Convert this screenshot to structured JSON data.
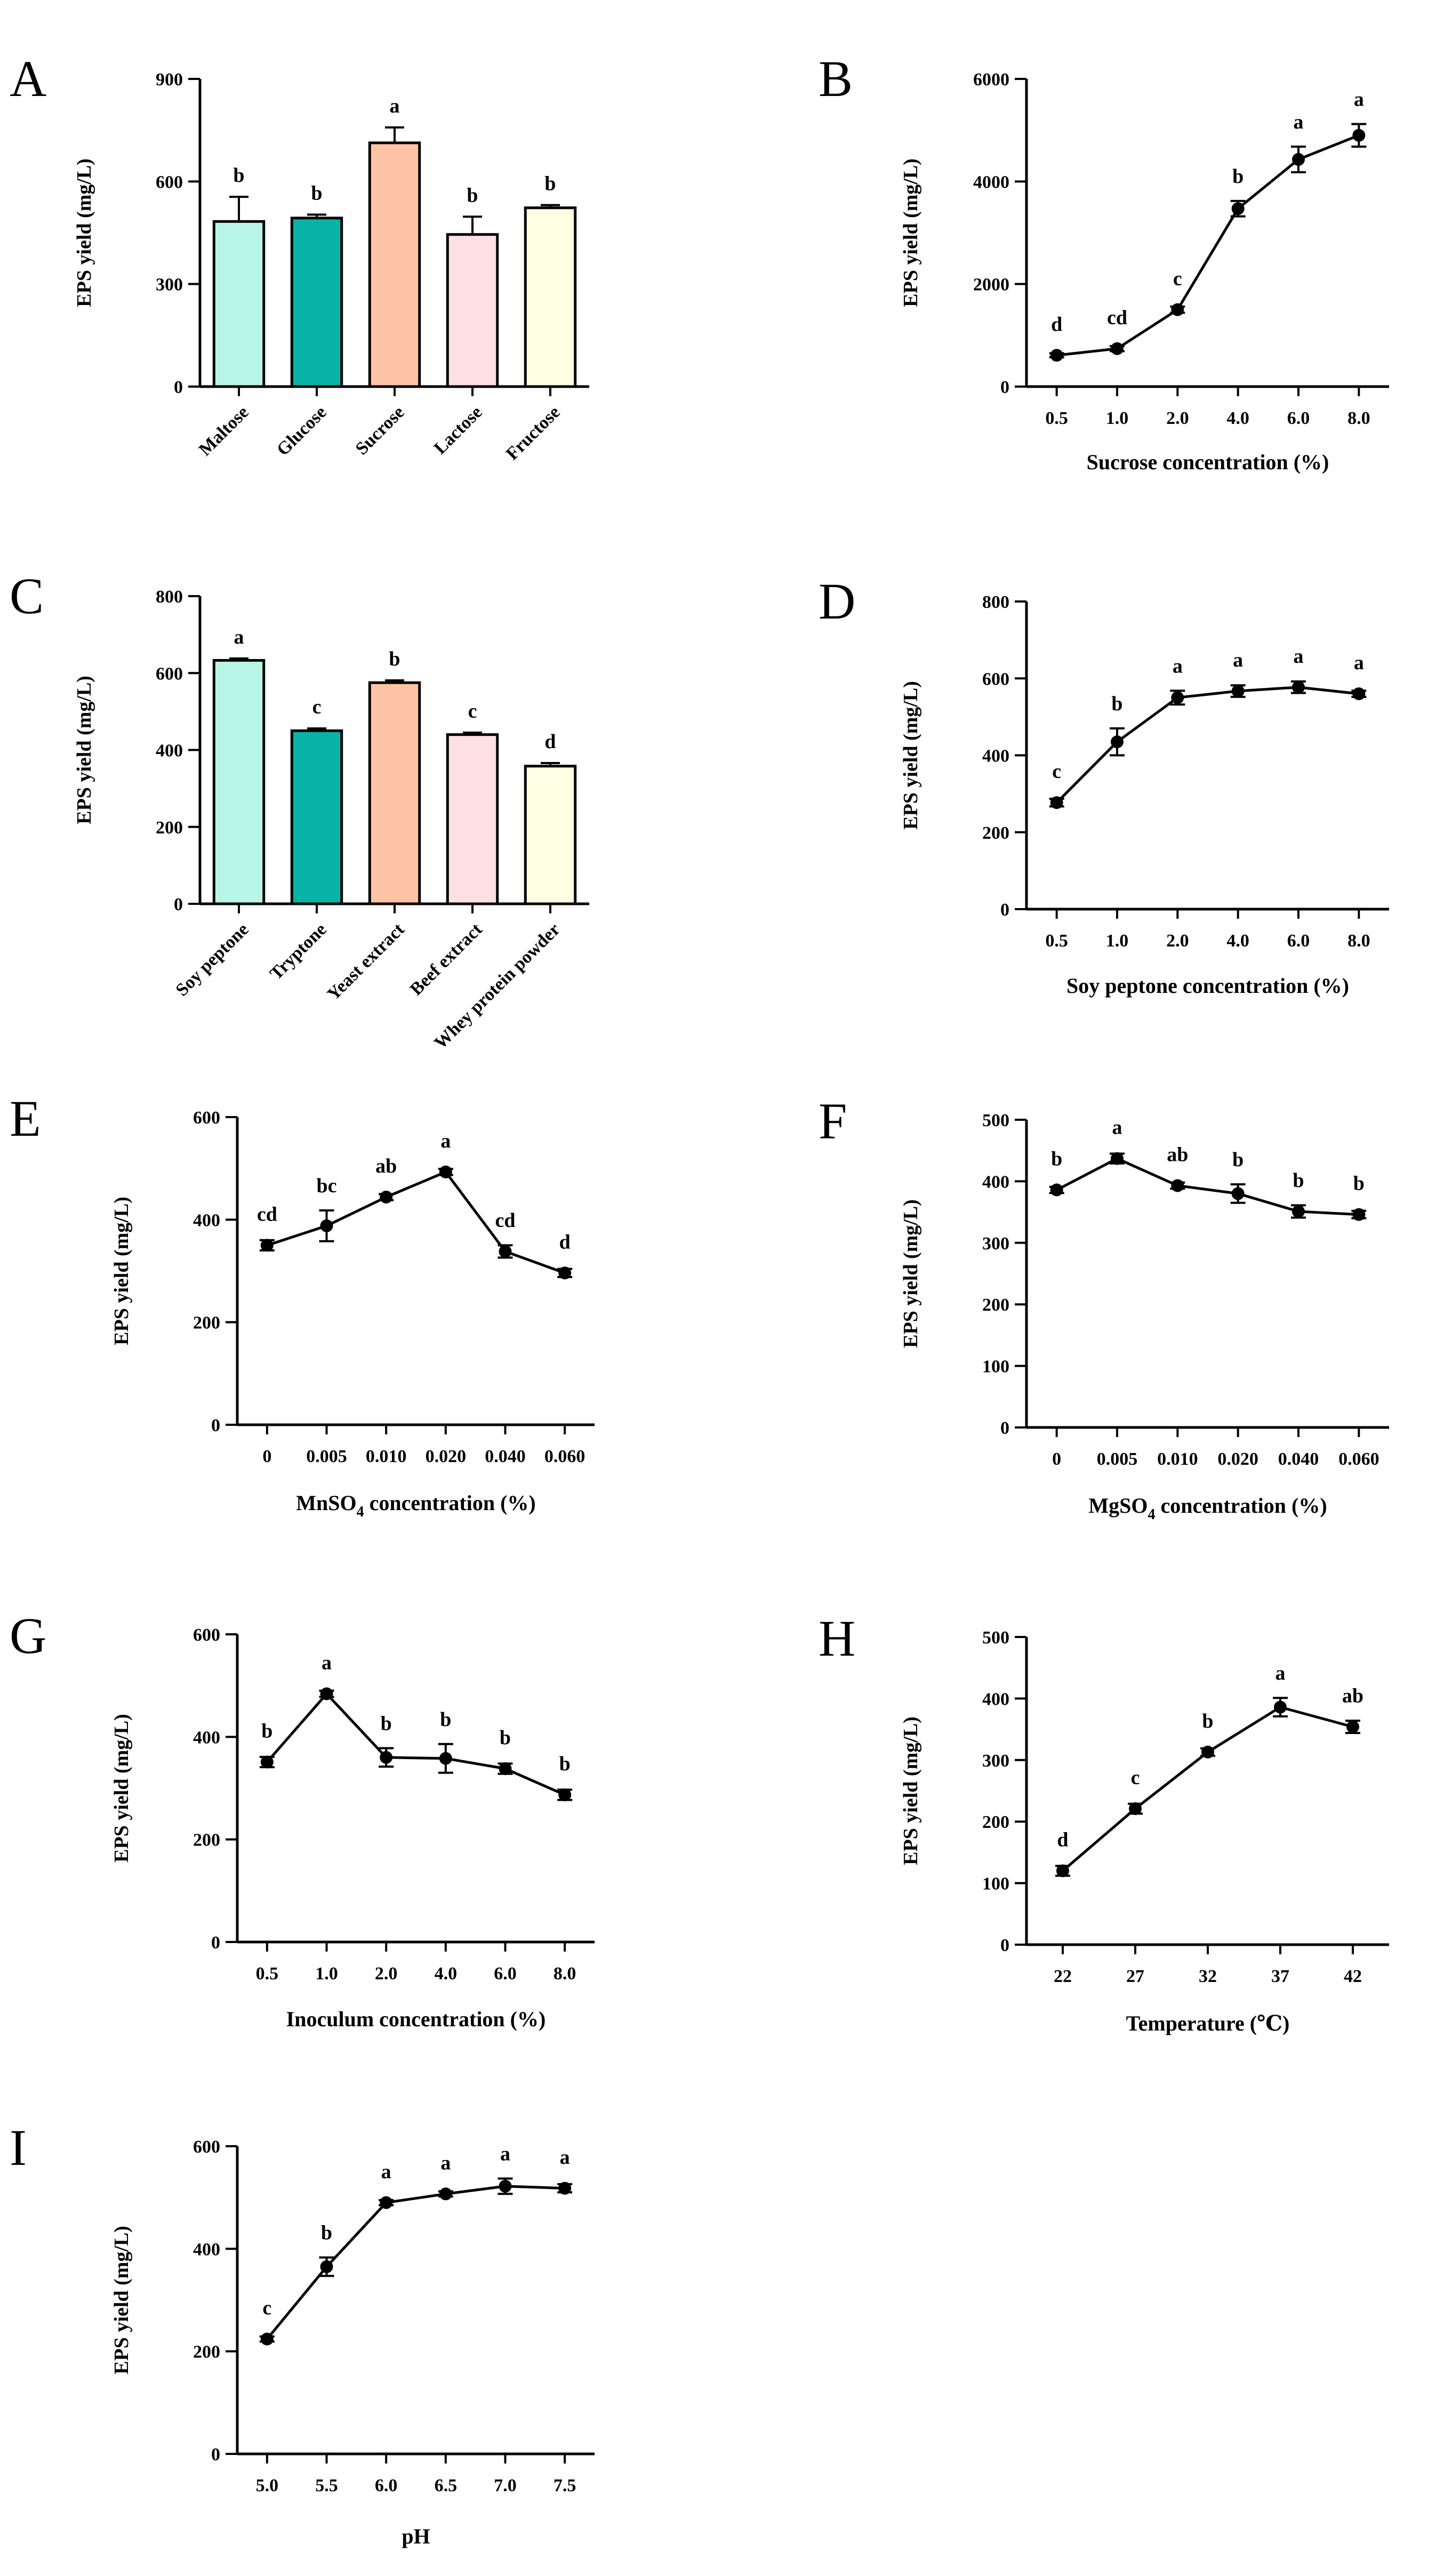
{
  "colors": {
    "bar_palette": [
      "#b8f5e6",
      "#08b2a6",
      "#fec3a5",
      "#fee0e3",
      "#fefee2"
    ],
    "axis": "#000000"
  },
  "chart_data": [
    {
      "panel": "A",
      "type": "bar",
      "categories": [
        "Maltose",
        "Glucose",
        "Sucrose",
        "Lactose",
        "Fructose"
      ],
      "values": [
        483,
        493,
        713,
        445,
        523
      ],
      "errors": [
        72,
        10,
        45,
        52,
        8
      ],
      "letters": [
        "b",
        "b",
        "a",
        "b",
        "b"
      ],
      "ylabel": "EPS yield (mg/L)",
      "xlabel": "",
      "ylim": [
        0,
        900
      ],
      "yticks": [
        "0",
        "300",
        "600",
        "900"
      ]
    },
    {
      "panel": "B",
      "type": "line",
      "categories": [
        "0.5",
        "1.0",
        "2.0",
        "4.0",
        "6.0",
        "8.0"
      ],
      "values": [
        610,
        740,
        1500,
        3470,
        4430,
        4900
      ],
      "errors": [
        40,
        50,
        60,
        150,
        250,
        220
      ],
      "letters": [
        "d",
        "cd",
        "c",
        "b",
        "a",
        "a"
      ],
      "ylabel": "EPS yield (mg/L)",
      "xlabel": "Sucrose concentration (%)",
      "ylim": [
        0,
        6000
      ],
      "yticks": [
        "0",
        "2000",
        "4000",
        "6000"
      ]
    },
    {
      "panel": "C",
      "type": "bar",
      "categories": [
        "Soy peptone",
        "Tryptone",
        "Yeast extract",
        "Beef extract",
        "Whey protein powder"
      ],
      "values": [
        633,
        450,
        575,
        440,
        358
      ],
      "errors": [
        5,
        6,
        6,
        5,
        8
      ],
      "letters": [
        "a",
        "c",
        "b",
        "c",
        "d"
      ],
      "ylabel": "EPS yield (mg/L)",
      "xlabel": "",
      "ylim": [
        0,
        800
      ],
      "yticks": [
        "0",
        "200",
        "400",
        "600",
        "800"
      ]
    },
    {
      "panel": "D",
      "type": "line",
      "categories": [
        "0.5",
        "1.0",
        "2.0",
        "4.0",
        "6.0",
        "8.0"
      ],
      "values": [
        277,
        435,
        550,
        567,
        577,
        560
      ],
      "errors": [
        10,
        35,
        18,
        15,
        15,
        8
      ],
      "letters": [
        "c",
        "b",
        "a",
        "a",
        "a",
        "a"
      ],
      "ylabel": "EPS yield (mg/L)",
      "xlabel": "Soy peptone concentration (%)",
      "ylim": [
        0,
        800
      ],
      "yticks": [
        "0",
        "200",
        "400",
        "600",
        "800"
      ]
    },
    {
      "panel": "E",
      "type": "line",
      "categories": [
        "0",
        "0.005",
        "0.010",
        "0.020",
        "0.040",
        "0.060"
      ],
      "values": [
        350,
        388,
        444,
        493,
        338,
        296
      ],
      "errors": [
        10,
        30,
        6,
        6,
        12,
        8
      ],
      "letters": [
        "cd",
        "bc",
        "ab",
        "a",
        "cd",
        "d"
      ],
      "ylabel": "EPS yield (mg/L)",
      "xlabel_main": "MnSO",
      "xlabel_sub": "4",
      "xlabel_rest": " concentration (%)",
      "ylim": [
        0,
        600
      ],
      "yticks": [
        "0",
        "200",
        "400",
        "600"
      ]
    },
    {
      "panel": "F",
      "type": "line",
      "categories": [
        "0",
        "0.005",
        "0.010",
        "0.020",
        "0.040",
        "0.060"
      ],
      "values": [
        386,
        437,
        393,
        380,
        351,
        346
      ],
      "errors": [
        5,
        8,
        5,
        15,
        10,
        6
      ],
      "letters": [
        "b",
        "a",
        "ab",
        "b",
        "b",
        "b"
      ],
      "ylabel": "EPS yield (mg/L)",
      "xlabel_main": "MgSO",
      "xlabel_sub": "4",
      "xlabel_rest": " concentration (%)",
      "ylim": [
        0,
        500
      ],
      "yticks": [
        "0",
        "100",
        "200",
        "300",
        "400",
        "500"
      ]
    },
    {
      "panel": "G",
      "type": "line",
      "categories": [
        "0.5",
        "1.0",
        "2.0",
        "4.0",
        "6.0",
        "8.0"
      ],
      "values": [
        351,
        484,
        360,
        358,
        338,
        287
      ],
      "errors": [
        10,
        6,
        18,
        28,
        10,
        10
      ],
      "letters": [
        "b",
        "a",
        "b",
        "b",
        "b",
        "b"
      ],
      "ylabel": "EPS yield (mg/L)",
      "xlabel": "Inoculum concentration (%)",
      "ylim": [
        0,
        600
      ],
      "yticks": [
        "0",
        "200",
        "400",
        "600"
      ]
    },
    {
      "panel": "H",
      "type": "line",
      "categories": [
        "22",
        "27",
        "32",
        "37",
        "42"
      ],
      "values": [
        120,
        221,
        313,
        386,
        354
      ],
      "errors": [
        8,
        8,
        6,
        15,
        10
      ],
      "letters": [
        "d",
        "c",
        "b",
        "a",
        "ab"
      ],
      "ylabel": "EPS yield (mg/L)",
      "xlabel": "Temperature (℃)",
      "ylim": [
        0,
        500
      ],
      "yticks": [
        "0",
        "100",
        "200",
        "300",
        "400",
        "500"
      ]
    },
    {
      "panel": "I",
      "type": "line",
      "categories": [
        "5.0",
        "5.5",
        "6.0",
        "6.5",
        "7.0",
        "7.5"
      ],
      "values": [
        224,
        365,
        490,
        507,
        522,
        518
      ],
      "errors": [
        5,
        18,
        5,
        5,
        15,
        8
      ],
      "letters": [
        "c",
        "b",
        "a",
        "a",
        "a",
        "a"
      ],
      "ylabel": "EPS yield (mg/L)",
      "xlabel": "pH",
      "ylim": [
        0,
        600
      ],
      "yticks": [
        "0",
        "200",
        "400",
        "600"
      ]
    }
  ]
}
